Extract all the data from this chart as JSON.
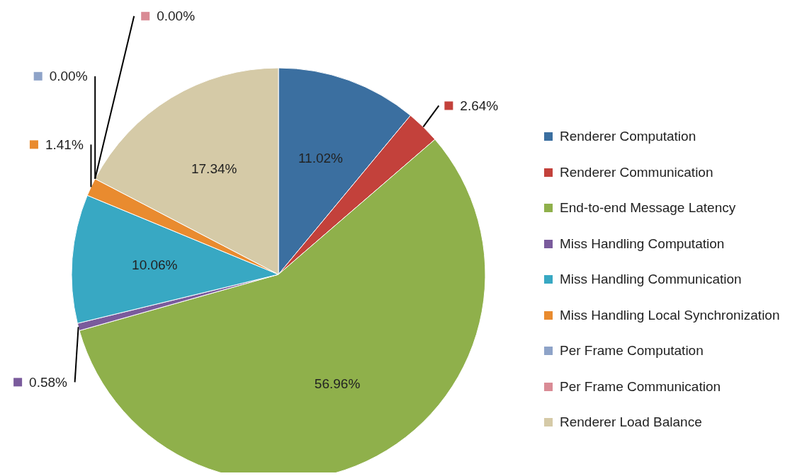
{
  "chart_data": {
    "type": "pie",
    "categories": [
      "Renderer Computation",
      "Renderer Communication",
      "End-to-end Message Latency",
      "Miss Handling Computation",
      "Miss Handling Communication",
      "Miss Handling Local Synchronization",
      "Per Frame Computation",
      "Per Frame Communication",
      "Renderer Load Balance"
    ],
    "values": [
      11.02,
      2.64,
      56.96,
      0.58,
      10.06,
      1.41,
      0.0,
      0.0,
      17.34
    ],
    "value_labels": [
      "11.02%",
      "2.64%",
      "56.96%",
      "0.58%",
      "10.06%",
      "1.41%",
      "0.00%",
      "0.00%",
      "17.34%"
    ],
    "colors": [
      "#3b6fa0",
      "#c3413b",
      "#8fb04b",
      "#7a5b9c",
      "#38a8c3",
      "#e98b2f",
      "#8ea3c8",
      "#d98b95",
      "#d5caa7"
    ],
    "legend": "right"
  }
}
